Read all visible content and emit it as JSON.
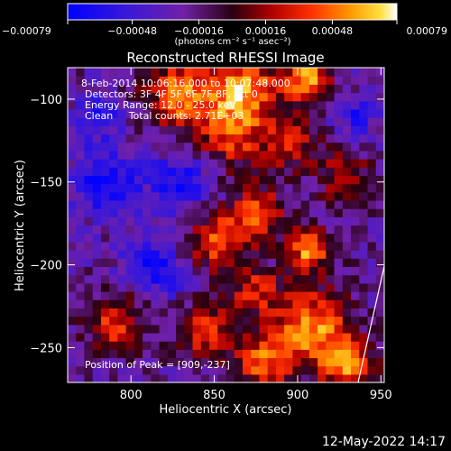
{
  "footer": {
    "timestamp": "12-May-2022 14:17"
  },
  "chart_data": {
    "type": "heatmap",
    "title": "Reconstructed RHESSI Image",
    "xlabel": "Heliocentric X (arcsec)",
    "ylabel": "Heliocentric Y (arcsec)",
    "xlim": [
      762,
      952
    ],
    "ylim": [
      -271,
      -81
    ],
    "x_ticks": [
      800,
      850,
      900,
      950
    ],
    "y_ticks": [
      -100,
      -150,
      -200,
      -250
    ],
    "x_tick_labels": [
      "800",
      "850",
      "900",
      "950"
    ],
    "y_tick_labels": [
      "−100",
      "−150",
      "−200",
      "−250"
    ],
    "colorbar": {
      "min": -0.00079,
      "max": 0.00079,
      "ticks": [
        -0.00079,
        -0.00048,
        -0.00016,
        0.00016,
        0.00048,
        0.00079
      ],
      "tick_labels": [
        "−0.00079",
        "−0.00048",
        "−0.00016",
        "0.00016",
        "0.00048",
        "0.00079"
      ],
      "units": "(photons cm⁻² s⁻¹ asec⁻²)"
    },
    "annotations": {
      "time_range": "8-Feb-2014 10:06:16.000 to 10:07:48.000",
      "detectors": "Detectors: 3F 4F 5F 6F 7F 8F, Att 0",
      "energy": "Energy Range: 12.0 - 25.0 keV",
      "method": "Clean     Total counts: 2.71E+03",
      "peak": "Position of Peak = [909,-237]"
    },
    "peak": {
      "x": 909,
      "y": -237
    },
    "sources": [
      {
        "x": 830,
        "y": -97,
        "amp": 0.00075,
        "sigma": 14
      },
      {
        "x": 868,
        "y": -93,
        "amp": 0.00079,
        "sigma": 13
      },
      {
        "x": 905,
        "y": -88,
        "amp": 0.00079,
        "sigma": 10
      },
      {
        "x": 860,
        "y": -120,
        "amp": 0.0006,
        "sigma": 14
      },
      {
        "x": 895,
        "y": -125,
        "amp": 0.0005,
        "sigma": 12
      },
      {
        "x": 928,
        "y": -148,
        "amp": 0.00045,
        "sigma": 11
      },
      {
        "x": 877,
        "y": -168,
        "amp": 0.0006,
        "sigma": 11
      },
      {
        "x": 852,
        "y": -185,
        "amp": 0.00065,
        "sigma": 12
      },
      {
        "x": 907,
        "y": -190,
        "amp": 0.00079,
        "sigma": 9
      },
      {
        "x": 808,
        "y": -210,
        "amp": 0.0004,
        "sigma": 10
      },
      {
        "x": 790,
        "y": -235,
        "amp": 0.00055,
        "sigma": 12
      },
      {
        "x": 875,
        "y": -215,
        "amp": 0.0005,
        "sigma": 11
      },
      {
        "x": 845,
        "y": -240,
        "amp": 0.00055,
        "sigma": 12
      },
      {
        "x": 880,
        "y": -258,
        "amp": 0.00065,
        "sigma": 12
      },
      {
        "x": 909,
        "y": -237,
        "amp": 0.00079,
        "sigma": 15
      },
      {
        "x": 930,
        "y": -260,
        "amp": 0.00079,
        "sigma": 11
      },
      {
        "x": 785,
        "y": -150,
        "amp": -0.00055,
        "sigma": 14
      },
      {
        "x": 830,
        "y": -150,
        "amp": -0.0005,
        "sigma": 12
      },
      {
        "x": 812,
        "y": -205,
        "amp": -0.00075,
        "sigma": 12
      },
      {
        "x": 780,
        "y": -110,
        "amp": -0.0004,
        "sigma": 10
      },
      {
        "x": 935,
        "y": -110,
        "amp": -0.0004,
        "sigma": 9
      }
    ]
  }
}
